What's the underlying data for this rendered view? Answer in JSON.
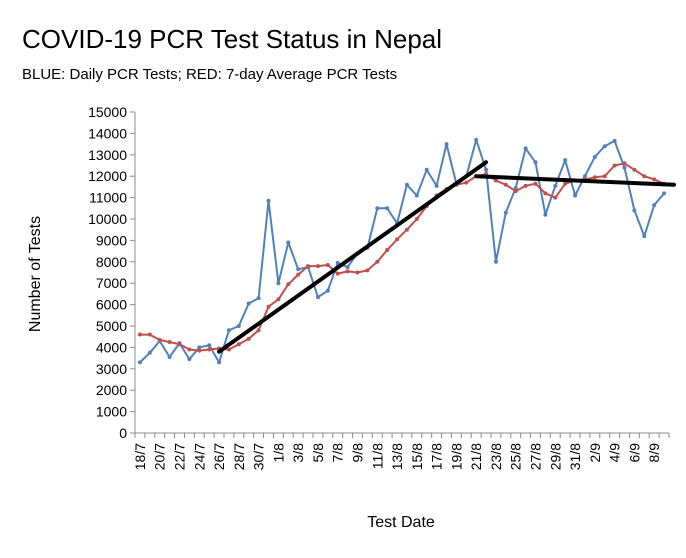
{
  "chart_data": {
    "type": "line",
    "title": "COVID-19 PCR Test Status in Nepal",
    "subtitle": "BLUE: Daily PCR Tests; RED: 7-day Average PCR Tests",
    "xlabel": "Test Date",
    "ylabel": "Number of Tests",
    "ylim": [
      0,
      15000
    ],
    "ytick_step": 1000,
    "grid": false,
    "x": [
      "18/7",
      "19/7",
      "20/7",
      "21/7",
      "22/7",
      "23/7",
      "24/7",
      "25/7",
      "26/7",
      "27/7",
      "28/7",
      "29/7",
      "30/7",
      "31/7",
      "1/8",
      "2/8",
      "3/8",
      "4/8",
      "5/8",
      "6/8",
      "7/8",
      "8/8",
      "9/8",
      "10/8",
      "11/8",
      "12/8",
      "13/8",
      "14/8",
      "15/8",
      "16/8",
      "17/8",
      "18/8",
      "19/8",
      "20/8",
      "21/8",
      "22/8",
      "23/8",
      "24/8",
      "25/8",
      "26/8",
      "27/8",
      "28/8",
      "29/8",
      "30/8",
      "31/8",
      "1/9",
      "2/9",
      "3/9",
      "4/9",
      "5/9",
      "6/9",
      "7/9",
      "8/9",
      "9/9"
    ],
    "x_tick_labels": [
      "18/7",
      "20/7",
      "22/7",
      "24/7",
      "26/7",
      "28/7",
      "30/7",
      "1/8",
      "3/8",
      "5/8",
      "7/8",
      "9/8",
      "11/8",
      "13/8",
      "15/8",
      "17/8",
      "19/8",
      "21/8",
      "23/8",
      "25/8",
      "27/8",
      "29/8",
      "31/8",
      "2/9",
      "4/9",
      "6/9",
      "8/9"
    ],
    "series": [
      {
        "name": "Daily PCR Tests",
        "color": "#4f81bd",
        "values": [
          3300,
          3750,
          4300,
          3550,
          4200,
          3450,
          4000,
          4100,
          3300,
          4800,
          5000,
          6050,
          6300,
          10850,
          7000,
          8900,
          7650,
          7750,
          6350,
          6650,
          7950,
          7750,
          8400,
          8650,
          10500,
          10500,
          9800,
          11600,
          11100,
          12300,
          11550,
          13500,
          11650,
          12000,
          13700,
          12300,
          8000,
          10300,
          11450,
          13300,
          12650,
          10200,
          11550,
          12750,
          11100,
          12000,
          12900,
          13400,
          13650,
          12400,
          10400,
          9200,
          10650,
          11200
        ]
      },
      {
        "name": "7-day Average PCR Tests",
        "color": "#c0504d",
        "values": [
          4600,
          4600,
          4350,
          4250,
          4150,
          3900,
          3850,
          3900,
          3950,
          3900,
          4150,
          4400,
          4800,
          5900,
          6250,
          6950,
          7400,
          7800,
          7800,
          7850,
          7450,
          7550,
          7500,
          7600,
          8000,
          8550,
          9050,
          9500,
          10000,
          10600,
          11100,
          11400,
          11600,
          11700,
          12000,
          12100,
          11800,
          11600,
          11300,
          11550,
          11650,
          11200,
          11000,
          11650,
          11800,
          11850,
          11950,
          12000,
          12500,
          12600,
          12300,
          12000,
          11850,
          11650
        ]
      }
    ],
    "trend_lines": [
      {
        "color": "#000000",
        "from_index": 8,
        "to_index": 35,
        "from_value": 3800,
        "to_value": 12650
      },
      {
        "color": "#000000",
        "from_index": 34,
        "to_index": 54,
        "from_value": 12000,
        "to_value": 11600
      }
    ]
  }
}
